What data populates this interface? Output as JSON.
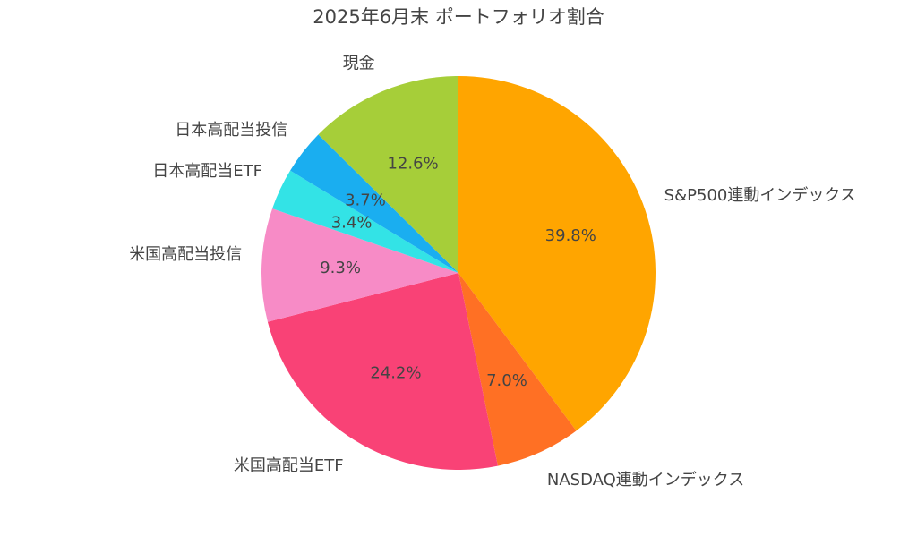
{
  "chart_data": {
    "type": "pie",
    "title": "2025年6月末 ポートフォリオ割合",
    "start_angle": 90,
    "direction": "clockwise",
    "slices": [
      {
        "label": "S&P500連動インデックス",
        "value": 39.8,
        "pct_label": "39.8%",
        "color": "#FFA500"
      },
      {
        "label": "NASDAQ連動インデックス",
        "value": 7.0,
        "pct_label": "7.0%",
        "color": "#FF7024"
      },
      {
        "label": "米国高配当ETF",
        "value": 24.2,
        "pct_label": "24.2%",
        "color": "#F94276"
      },
      {
        "label": "米国高配当投信",
        "value": 9.3,
        "pct_label": "9.3%",
        "color": "#F78BC6"
      },
      {
        "label": "日本高配当ETF",
        "value": 3.4,
        "pct_label": "3.4%",
        "color": "#33E3E6"
      },
      {
        "label": "日本高配当投信",
        "value": 3.7,
        "pct_label": "3.7%",
        "color": "#1AAEF0"
      },
      {
        "label": "現金",
        "value": 12.6,
        "pct_label": "12.6%",
        "color": "#A6CE39"
      }
    ]
  }
}
